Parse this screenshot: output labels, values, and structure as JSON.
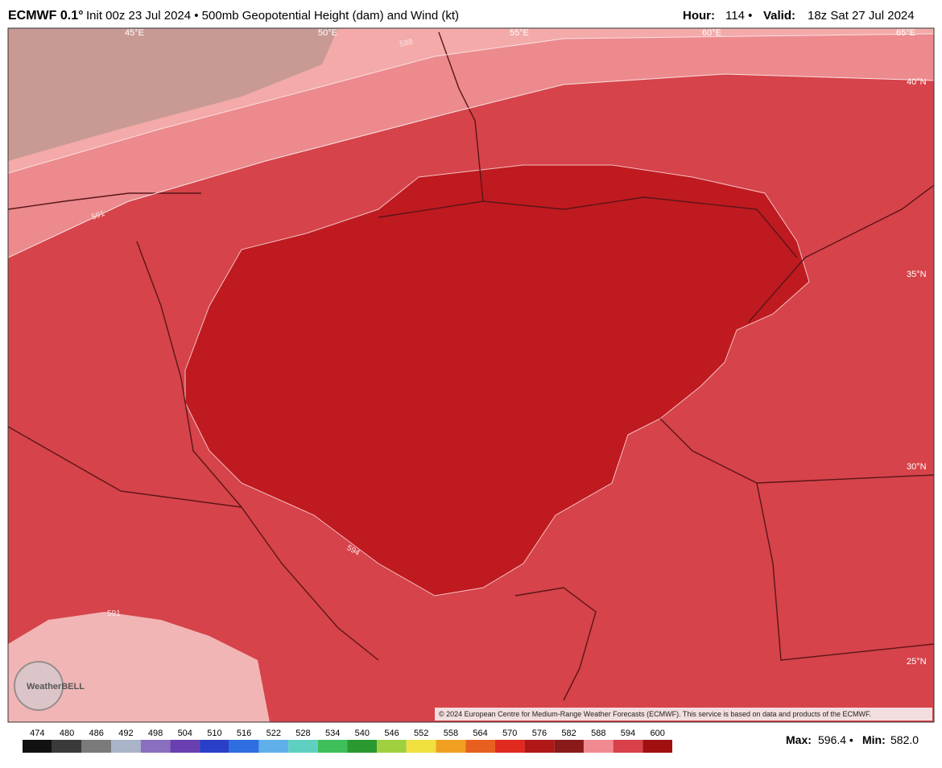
{
  "header": {
    "model": "ECMWF 0.1°",
    "description": "Init 00z 23 Jul 2024 • 500mb Geopotential Height (dam) and Wind (kt)",
    "hour_label": "Hour:",
    "hour": "114 •",
    "valid_label": "Valid:",
    "valid": "18z Sat 27 Jul 2024"
  },
  "map": {
    "longitude_labels": [
      "45°E",
      "50°E",
      "55°E",
      "60°E",
      "65°E"
    ],
    "latitude_labels": [
      "40°N",
      "35°N",
      "30°N",
      "25°N"
    ],
    "contour_labels": [
      "588",
      "591",
      "594",
      "591"
    ],
    "copyright": "© 2024 European Centre for Medium-Range Weather Forecasts (ECMWF). This service is based on data and products of the ECMWF.",
    "logo": "WeatherBELL"
  },
  "colorbar": {
    "ticks": [
      474,
      480,
      486,
      492,
      498,
      504,
      510,
      516,
      522,
      528,
      534,
      540,
      546,
      552,
      558,
      564,
      570,
      576,
      582,
      588,
      594,
      600
    ],
    "colors": [
      "#111111",
      "#3a3a3a",
      "#7a7a7a",
      "#a9b4c8",
      "#8a6fc0",
      "#6a3fb0",
      "#2a3fc8",
      "#2f6ee0",
      "#5fb0ea",
      "#5fd0c0",
      "#3fbf5a",
      "#2a9a30",
      "#9fd040",
      "#f0e040",
      "#f0a020",
      "#e86020",
      "#e02a20",
      "#b01818",
      "#8a1a1a",
      "#f08a90",
      "#d8404a",
      "#a01010"
    ]
  },
  "stats": {
    "max_label": "Max:",
    "max": "596.4 •",
    "min_label": "Min:",
    "min": "582.0"
  }
}
